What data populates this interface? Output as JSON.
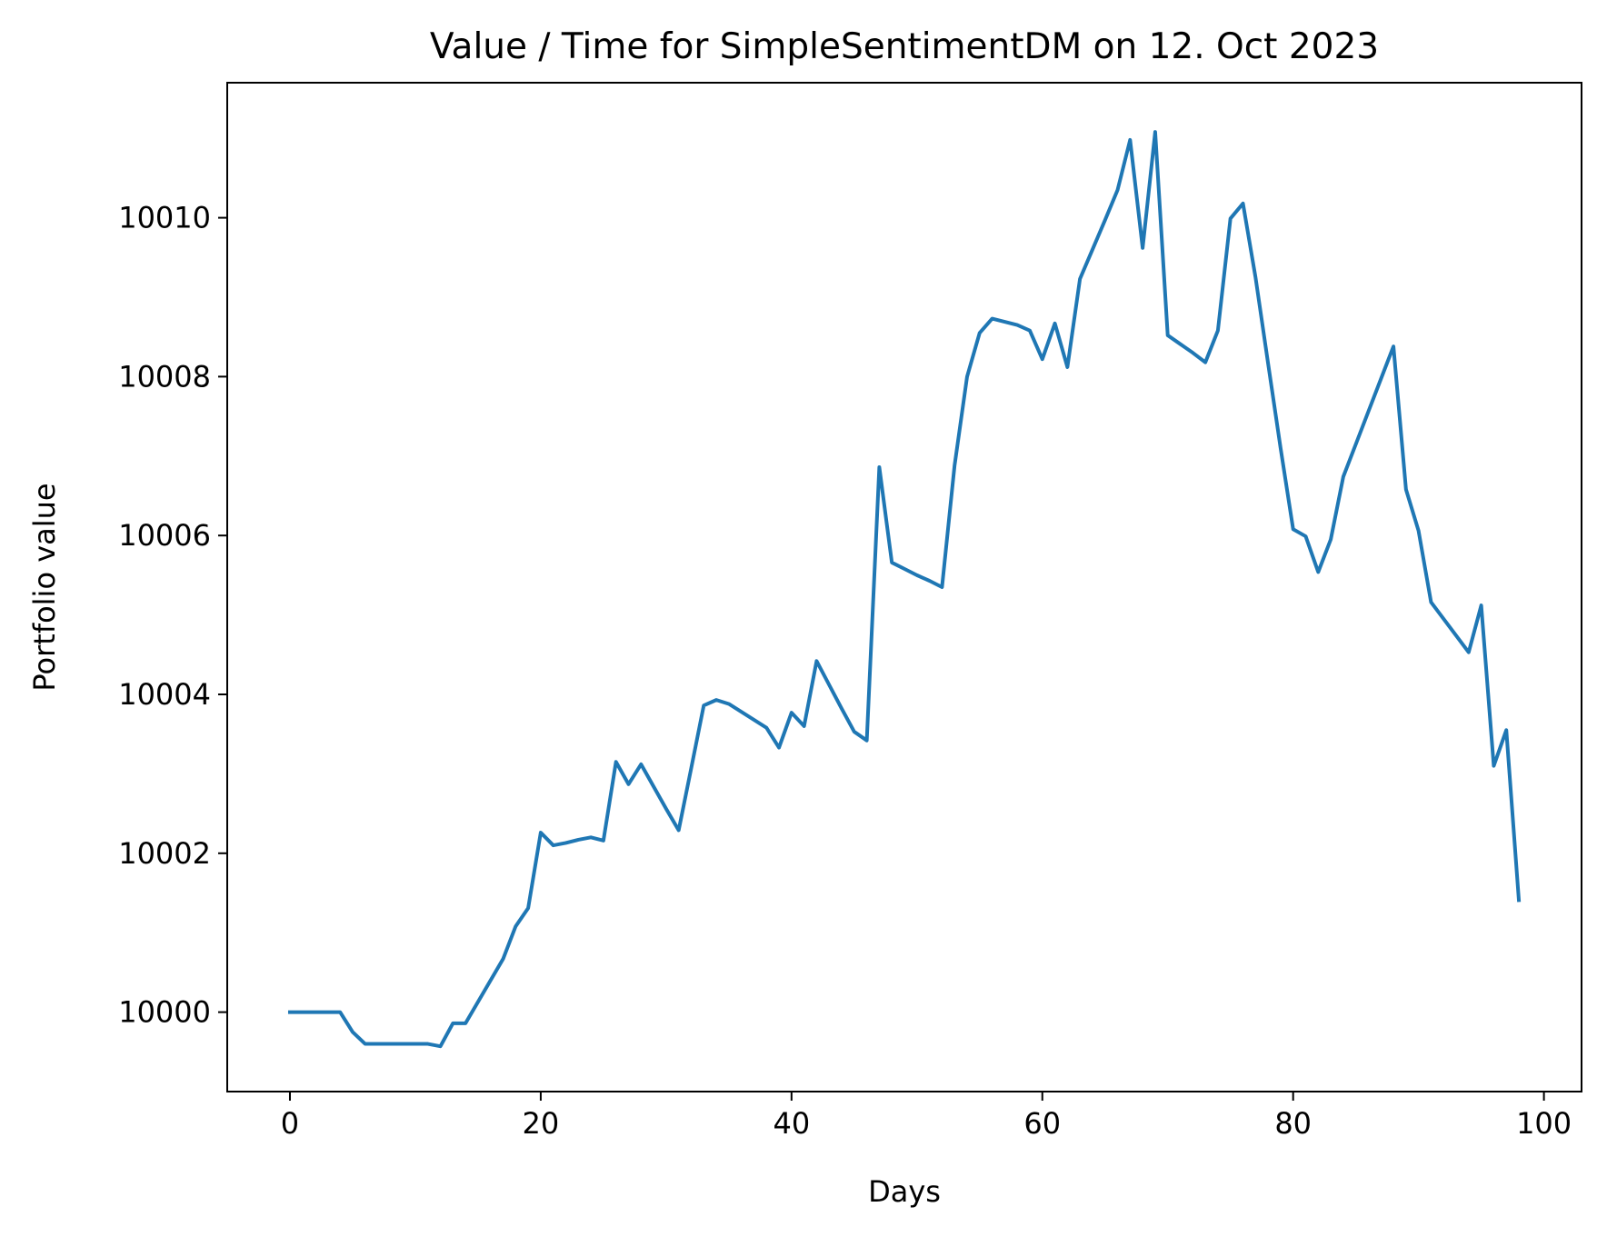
{
  "chart_data": {
    "type": "line",
    "title": "Value / Time for SimpleSentimentDM on 12. Oct 2023",
    "xlabel": "Days",
    "ylabel": "Portfolio value",
    "xlim": [
      -5,
      103
    ],
    "ylim": [
      9999.0,
      10011.7
    ],
    "xticks": [
      0,
      20,
      40,
      60,
      80,
      100
    ],
    "yticks": [
      10000,
      10002,
      10004,
      10006,
      10008,
      10010
    ],
    "grid": false,
    "series": [
      {
        "color": "#1f77b4",
        "x": [
          0,
          1,
          2,
          3,
          4,
          5,
          6,
          7,
          8,
          9,
          10,
          11,
          12,
          13,
          14,
          15,
          16,
          17,
          18,
          19,
          20,
          21,
          22,
          23,
          24,
          25,
          26,
          27,
          28,
          29,
          30,
          31,
          32,
          33,
          34,
          35,
          36,
          37,
          38,
          39,
          40,
          41,
          42,
          43,
          44,
          45,
          46,
          47,
          48,
          49,
          50,
          51,
          52,
          53,
          54,
          55,
          56,
          57,
          58,
          59,
          60,
          61,
          62,
          63,
          64,
          65,
          66,
          67,
          68,
          69,
          70,
          71,
          72,
          73,
          74,
          75,
          76,
          77,
          78,
          79,
          80,
          81,
          82,
          83,
          84,
          85,
          86,
          87,
          88,
          89,
          90,
          91,
          92,
          93,
          94,
          95,
          96,
          97,
          98
        ],
        "y": [
          10000.0,
          10000.0,
          10000.0,
          10000.0,
          10000.0,
          9999.75,
          9999.6,
          9999.6,
          9999.6,
          9999.6,
          9999.6,
          9999.6,
          9999.57,
          9999.86,
          9999.86,
          10000.13,
          10000.4,
          10000.67,
          10001.08,
          10001.31,
          10002.26,
          10002.1,
          10002.13,
          10002.17,
          10002.2,
          10002.16,
          10003.15,
          10002.87,
          10003.12,
          10002.84,
          10002.56,
          10002.29,
          10003.07,
          10003.86,
          10003.93,
          10003.88,
          10003.78,
          10003.68,
          10003.58,
          10003.33,
          10003.77,
          10003.6,
          10004.42,
          10004.12,
          10003.82,
          10003.53,
          10003.42,
          10006.86,
          10005.66,
          10005.58,
          10005.5,
          10005.43,
          10005.35,
          10006.88,
          10008.0,
          10008.55,
          10008.73,
          10008.69,
          10008.65,
          10008.58,
          10008.22,
          10008.67,
          10008.12,
          10009.23,
          10009.6,
          10009.97,
          10010.35,
          10010.98,
          10009.62,
          10011.08,
          10008.52,
          10008.41,
          10008.3,
          10008.18,
          10008.58,
          10009.99,
          10010.18,
          10009.25,
          10008.17,
          10007.1,
          10006.08,
          10005.99,
          10005.54,
          10005.95,
          10006.74,
          10007.15,
          10007.56,
          10007.97,
          10008.38,
          10006.58,
          10006.06,
          10005.16,
          10004.95,
          10004.74,
          10004.53,
          10005.12,
          10003.1,
          10003.55,
          10001.41
        ]
      }
    ]
  }
}
